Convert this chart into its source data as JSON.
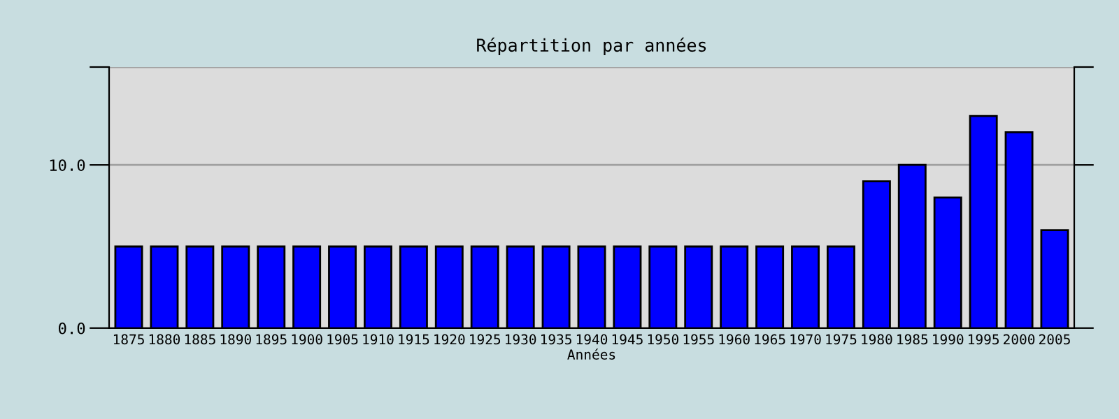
{
  "chart_data": {
    "type": "bar",
    "title": "Répartition par années",
    "xlabel": "Années",
    "categories": [
      "1875",
      "1880",
      "1885",
      "1890",
      "1895",
      "1900",
      "1905",
      "1910",
      "1915",
      "1920",
      "1925",
      "1930",
      "1935",
      "1940",
      "1945",
      "1950",
      "1955",
      "1960",
      "1965",
      "1970",
      "1975",
      "1980",
      "1985",
      "1990",
      "1995",
      "2000",
      "2005"
    ],
    "values": [
      5,
      5,
      5,
      5,
      5,
      5,
      5,
      5,
      5,
      5,
      5,
      5,
      5,
      5,
      5,
      5,
      5,
      5,
      5,
      5,
      5,
      9,
      10,
      8,
      13,
      12,
      6
    ],
    "color": "#0000ff",
    "ylim": [
      0,
      16
    ],
    "yticks": [
      {
        "value": 0,
        "label": "0.0"
      },
      {
        "value": 10,
        "label": "10.0"
      },
      {
        "value": 16,
        "label": null
      }
    ],
    "grid": "y",
    "legend": false
  }
}
